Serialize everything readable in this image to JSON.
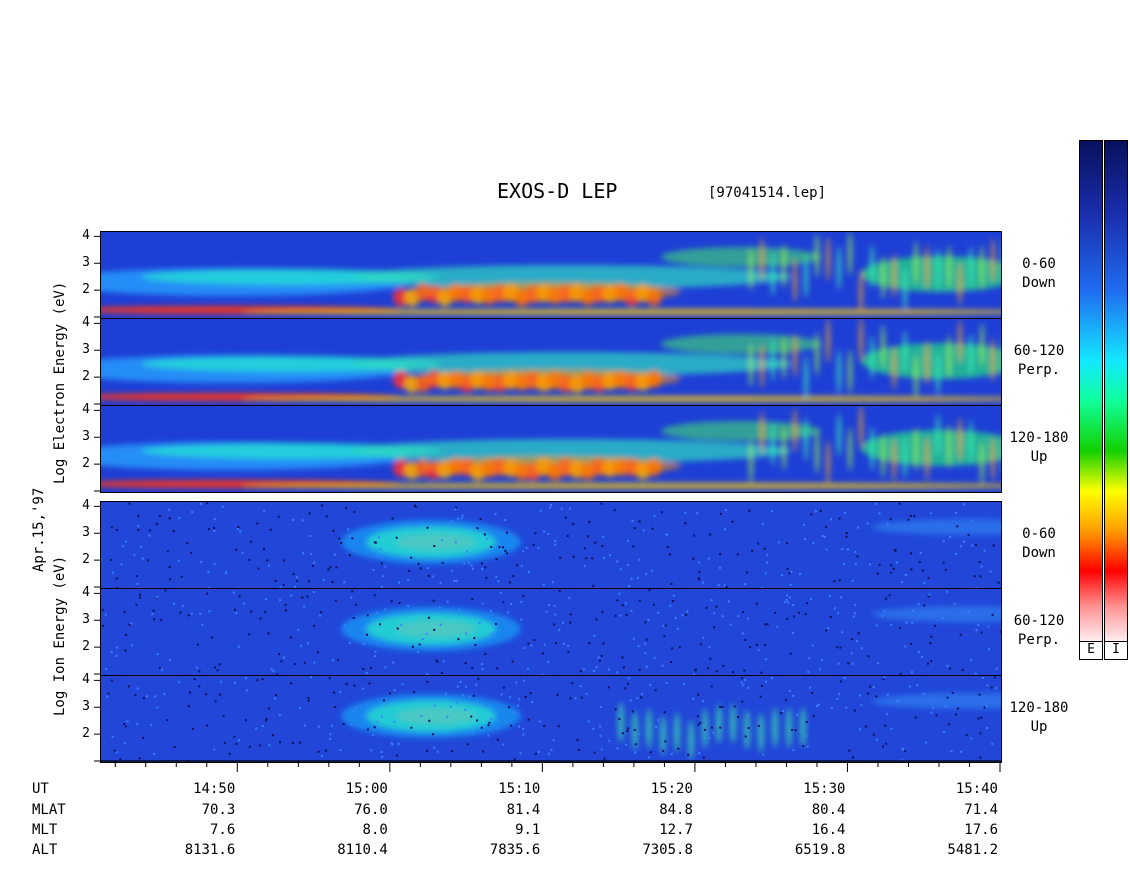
{
  "header": {
    "title": "EXOS-D LEP",
    "file": "[97041514.lep]"
  },
  "date_label": "Apr.15,'97",
  "electron_label": "Log Electron Energy (eV)",
  "ion_label": "Log Ion Energy (eV)",
  "colorbars": {
    "electron_label": "E",
    "ion_label": "I"
  },
  "panels": [
    {
      "species": "electron",
      "pitch": "0-60",
      "dir": "Down"
    },
    {
      "species": "electron",
      "pitch": "60-120",
      "dir": "Perp."
    },
    {
      "species": "electron",
      "pitch": "120-180",
      "dir": "Up"
    },
    {
      "species": "ion",
      "pitch": "0-60",
      "dir": "Down"
    },
    {
      "species": "ion",
      "pitch": "60-120",
      "dir": "Perp."
    },
    {
      "species": "ion",
      "pitch": "120-180",
      "dir": "Up"
    }
  ],
  "ephemeris": {
    "rows": [
      "UT",
      "MLAT",
      "MLT",
      "ALT"
    ],
    "UT": [
      "14:50",
      "15:00",
      "15:10",
      "15:20",
      "15:30",
      "15:40"
    ],
    "MLAT": [
      "70.3",
      "76.0",
      "81.4",
      "84.8",
      "80.4",
      "71.4"
    ],
    "MLT": [
      "7.6",
      "8.0",
      "9.1",
      "12.7",
      "16.4",
      "17.6"
    ],
    "ALT": [
      "8131.6",
      "8110.4",
      "7835.6",
      "7305.8",
      "6519.8",
      "5481.2"
    ]
  },
  "chart_data": {
    "type": "heatmap",
    "title": "EXOS-D LEP",
    "subtitle": "[97041514.lep]",
    "x_axis": {
      "label": "UT",
      "ticks": [
        "14:50",
        "15:00",
        "15:10",
        "15:20",
        "15:30",
        "15:40"
      ],
      "range": [
        "14:41",
        "15:40"
      ]
    },
    "y_axis": {
      "ticks": [
        1,
        2,
        3,
        4
      ],
      "range": [
        1,
        4.2
      ]
    },
    "colormap": "rainbow (white-red-yellow-green-cyan-blue-navy)"
  }
}
